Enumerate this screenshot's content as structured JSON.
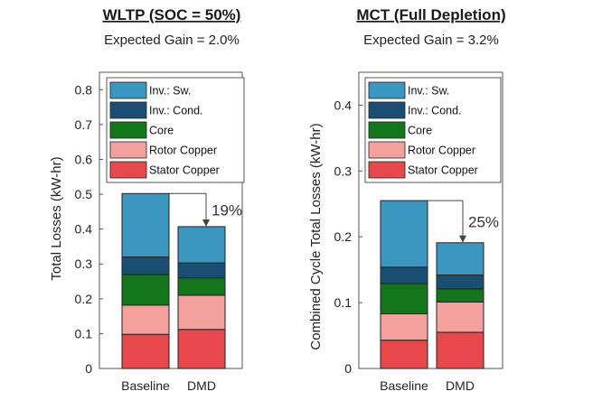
{
  "chart_data": [
    {
      "type": "bar",
      "stacked": true,
      "title": "WLTP (SOC = 50%)",
      "subtitle": "Expected Gain = 2.0%",
      "ylabel": "Total Losses (kW-hr)",
      "categories": [
        "Baseline",
        "DMD"
      ],
      "ylim": [
        0,
        0.85
      ],
      "yticks": [
        0,
        0.1,
        0.2,
        0.3,
        0.4,
        0.5,
        0.6,
        0.7,
        0.8
      ],
      "ytick_labels": [
        "0",
        "0.1",
        "0.2",
        "0.3",
        "0.4",
        "0.5",
        "0.6",
        "0.7",
        "0.8"
      ],
      "series": [
        {
          "name": "Stator Copper",
          "color": "#e8474c",
          "values": [
            0.098,
            0.112
          ]
        },
        {
          "name": "Rotor Copper",
          "color": "#f4a09c",
          "values": [
            0.084,
            0.098
          ]
        },
        {
          "name": "Core",
          "color": "#13761b",
          "values": [
            0.088,
            0.05
          ]
        },
        {
          "name": "Inv.: Cond.",
          "color": "#1a4f74",
          "values": [
            0.05,
            0.043
          ]
        },
        {
          "name": "Inv.: Sw.",
          "color": "#3a97bf",
          "values": [
            0.182,
            0.104
          ]
        }
      ],
      "legend_order": [
        "Inv.: Sw.",
        "Inv.: Cond.",
        "Core",
        "Rotor Copper",
        "Stator Copper"
      ],
      "legend_position": "top",
      "annotation": "19%"
    },
    {
      "type": "bar",
      "stacked": true,
      "title": "MCT (Full Depletion)",
      "subtitle": "Expected Gain = 3.2%",
      "ylabel": "Combined Cycle Total Losses (kW-hr)",
      "categories": [
        "Baseline",
        "DMD"
      ],
      "ylim": [
        0,
        0.45
      ],
      "yticks": [
        0,
        0.1,
        0.2,
        0.3,
        0.4
      ],
      "ytick_labels": [
        "0",
        "0.1",
        "0.2",
        "0.3",
        "0.4"
      ],
      "series": [
        {
          "name": "Stator Copper",
          "color": "#e8474c",
          "values": [
            0.043,
            0.055
          ]
        },
        {
          "name": "Rotor Copper",
          "color": "#f4a09c",
          "values": [
            0.04,
            0.046
          ]
        },
        {
          "name": "Core",
          "color": "#13761b",
          "values": [
            0.046,
            0.02
          ]
        },
        {
          "name": "Inv.: Cond.",
          "color": "#1a4f74",
          "values": [
            0.025,
            0.021
          ]
        },
        {
          "name": "Inv.: Sw.",
          "color": "#3a97bf",
          "values": [
            0.101,
            0.049
          ]
        }
      ],
      "legend_order": [
        "Inv.: Sw.",
        "Inv.: Cond.",
        "Core",
        "Rotor Copper",
        "Stator Copper"
      ],
      "legend_position": "top",
      "annotation": "25%"
    }
  ]
}
